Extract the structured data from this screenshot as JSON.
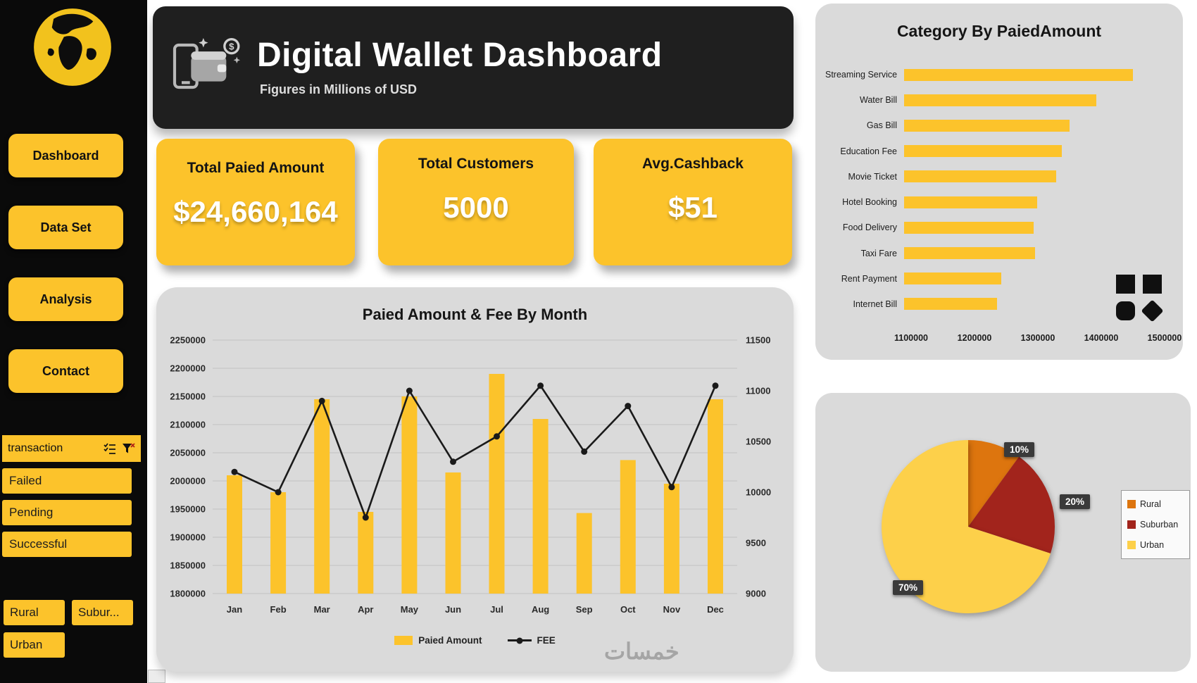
{
  "header": {
    "title": "Digital Wallet Dashboard",
    "subtitle": "Figures in Millions of USD"
  },
  "sidebar": {
    "nav": [
      "Dashboard",
      "Data Set",
      "Analysis",
      "Contact"
    ],
    "transaction_slicer": {
      "title": "transaction",
      "options": [
        "Failed",
        "Pending",
        "Successful"
      ]
    },
    "area_slicer": {
      "options": [
        "Rural",
        "Subur...",
        "Urban"
      ]
    }
  },
  "kpis": [
    {
      "label": "Total Paied Amount",
      "value": "$24,660,164"
    },
    {
      "label": "Total Customers",
      "value": "5000"
    },
    {
      "label": "Avg.Cashback",
      "value": "$51"
    }
  ],
  "icons": {
    "coin_symbol": "$"
  },
  "watermark": "خمسات",
  "colors": {
    "yellow": "#FCC32B",
    "panel": "#DADADA",
    "dark": "#1F1F1F",
    "line": "#1A1A1A"
  },
  "chart_data": [
    {
      "type": "bar",
      "subtype": "combo-bar-line",
      "title": "Paied Amount & Fee By Month",
      "categories": [
        "Jan",
        "Feb",
        "Mar",
        "Apr",
        "May",
        "Jun",
        "Jul",
        "Aug",
        "Sep",
        "Oct",
        "Nov",
        "Dec"
      ],
      "series": [
        {
          "name": "Paied Amount",
          "type": "bar",
          "axis": "left",
          "values": [
            2010000,
            1980000,
            2145000,
            1945000,
            2150000,
            2015000,
            2190000,
            2110000,
            1943000,
            2037000,
            1995000,
            2145000
          ]
        },
        {
          "name": "FEE",
          "type": "line",
          "axis": "right",
          "values": [
            10200,
            10000,
            10900,
            9750,
            11000,
            10300,
            10550,
            11050,
            10400,
            10850,
            10050,
            11050
          ]
        }
      ],
      "left_axis": {
        "min": 1800000,
        "max": 2250000,
        "step": 50000
      },
      "right_axis": {
        "min": 9000,
        "max": 11500,
        "step": 500
      },
      "grid": true,
      "legend_position": "bottom"
    },
    {
      "type": "bar",
      "orientation": "horizontal",
      "title": "Category By PaiedAmount",
      "categories": [
        "Streaming Service",
        "Water Bill",
        "Gas Bill",
        "Education Fee",
        "Movie Ticket",
        "Hotel Booking",
        "Food Delivery",
        "Taxi Fare",
        "Rent Payment",
        "Internet Bill"
      ],
      "values": [
        1451000,
        1395000,
        1354000,
        1342000,
        1334000,
        1304000,
        1299000,
        1301000,
        1249000,
        1243000
      ],
      "xlim": [
        1100000,
        1500000
      ],
      "x_ticks": [
        1100000,
        1200000,
        1300000,
        1400000,
        1500000
      ],
      "grid": false
    },
    {
      "type": "pie",
      "labels": [
        "Rural",
        "Suburban",
        "Urban"
      ],
      "values": [
        10,
        20,
        70
      ],
      "value_labels": [
        "10%",
        "20%",
        "70%"
      ],
      "colors": [
        "#DD750E",
        "#A2241C",
        "#FDD04A"
      ],
      "legend_position": "right"
    }
  ]
}
